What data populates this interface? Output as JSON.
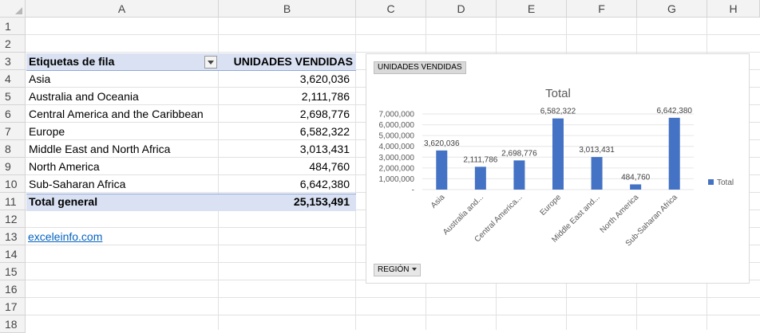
{
  "columns": [
    "A",
    "B",
    "C",
    "D",
    "E",
    "F",
    "G",
    "H"
  ],
  "rows": [
    "1",
    "2",
    "3",
    "4",
    "5",
    "6",
    "7",
    "8",
    "9",
    "10",
    "11",
    "12",
    "13",
    "14",
    "15",
    "16",
    "17",
    "18"
  ],
  "pivot": {
    "header_label": "Etiquetas de fila",
    "header_value": "UNIDADES VENDIDAS",
    "items": [
      {
        "label": "Asia",
        "value": "3,620,036"
      },
      {
        "label": "Australia and Oceania",
        "value": "2,111,786"
      },
      {
        "label": "Central America and the Caribbean",
        "value": "2,698,776"
      },
      {
        "label": "Europe",
        "value": "6,582,322"
      },
      {
        "label": "Middle East and North Africa",
        "value": "3,013,431"
      },
      {
        "label": "North America",
        "value": "484,760"
      },
      {
        "label": "Sub-Saharan Africa",
        "value": "6,642,380"
      }
    ],
    "total_label": "Total general",
    "total_value": "25,153,491"
  },
  "link_text": "exceleinfo.com",
  "chart": {
    "value_field_button": "UNIDADES VENDIDAS",
    "axis_field_button": "REGIÓN",
    "bar_color": "#4472c4"
  },
  "chart_data": {
    "type": "bar",
    "title": "Total",
    "categories": [
      "Asia",
      "Australia and...",
      "Central America...",
      "Europe",
      "Middle East and...",
      "North America",
      "Sub-Saharan Africa"
    ],
    "series": [
      {
        "name": "Total",
        "values": [
          3620036,
          2111786,
          2698776,
          6582322,
          3013431,
          484760,
          6642380
        ]
      }
    ],
    "data_labels": [
      "3,620,036",
      "2,111,786",
      "2,698,776",
      "6,582,322",
      "3,013,431",
      "484,760",
      "6,642,380"
    ],
    "y_ticks": [
      "-",
      "1,000,000",
      "2,000,000",
      "3,000,000",
      "4,000,000",
      "5,000,000",
      "6,000,000",
      "7,000,000"
    ],
    "ylim": [
      0,
      7000000
    ],
    "grid": true,
    "legend_position": "right"
  }
}
